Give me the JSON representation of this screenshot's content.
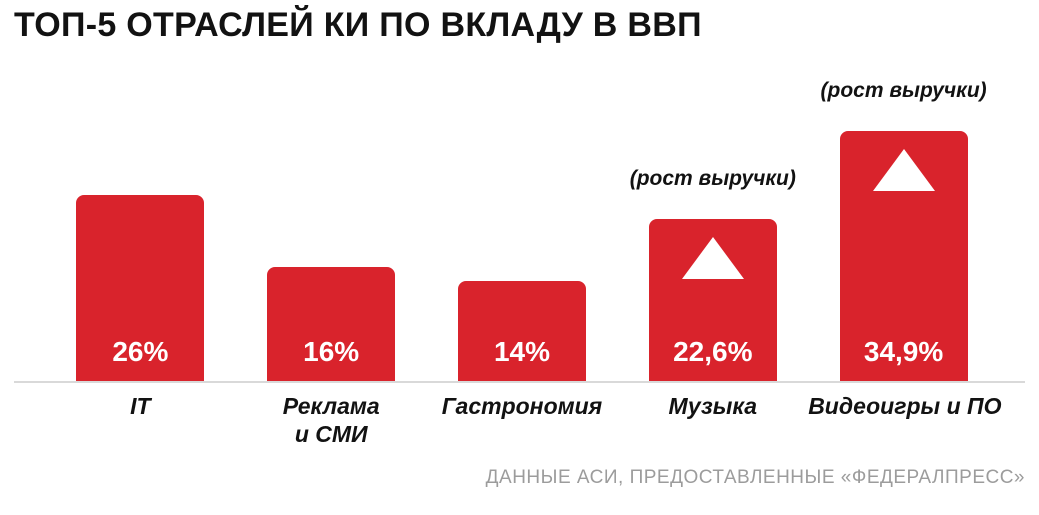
{
  "colors": {
    "background": "#ffffff",
    "bar": "#d9232c",
    "title_text": "#121212",
    "category_text": "#121212",
    "annotation_text": "#121212",
    "value_text": "#ffffff",
    "baseline": "#d9d9d9",
    "source_text": "#9c9c9c"
  },
  "chart_data": {
    "type": "bar",
    "title": "ТОП-5 ОТРАСЛЕЙ КИ ПО ВКЛАДУ В ВВП",
    "source": "ДАННЫЕ АСИ, ПРЕДОСТАВЛЕННЫЕ «ФЕДЕРАЛПРЕСС»",
    "xlabel": "",
    "ylabel": "",
    "ylim": [
      0,
      36
    ],
    "grid": false,
    "legend": false,
    "categories": [
      "IT",
      "Реклама и СМИ",
      "Гастрономия",
      "Музыка",
      "Видеоигры и ПО"
    ],
    "values": [
      26,
      16,
      14,
      22.6,
      34.9
    ],
    "bars": [
      {
        "category": "IT",
        "category_display": "IT",
        "value": 26,
        "label": "26%",
        "annotation": "",
        "arrow": false
      },
      {
        "category": "Реклама и СМИ",
        "category_display": "Реклама\nи СМИ",
        "value": 16,
        "label": "16%",
        "annotation": "",
        "arrow": false
      },
      {
        "category": "Гастрономия",
        "category_display": "Гастрономия",
        "value": 14,
        "label": "14%",
        "annotation": "",
        "arrow": false
      },
      {
        "category": "Музыка",
        "category_display": "Музыка",
        "value": 22.6,
        "label": "22,6%",
        "annotation": "(рост выручки)",
        "arrow": true
      },
      {
        "category": "Видеоигры и ПО",
        "category_display": "Видеоигры и ПО",
        "value": 34.9,
        "label": "34,9%",
        "annotation": "(рост выручки)",
        "arrow": true
      }
    ]
  }
}
